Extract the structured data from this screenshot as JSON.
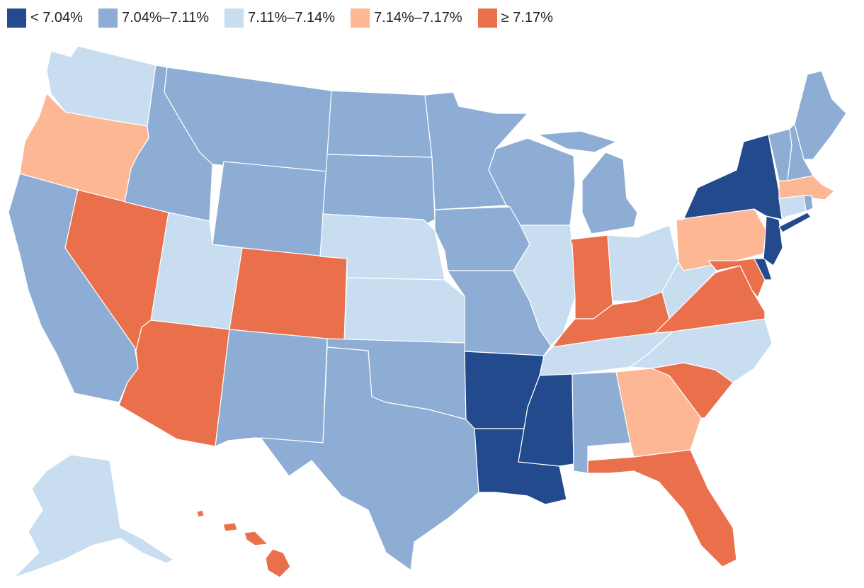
{
  "legend": {
    "bins": [
      {
        "label": "< 7.04%",
        "color": "#234a8c"
      },
      {
        "label": "7.04%–7.11%",
        "color": "#8eadd5"
      },
      {
        "label": "7.11%–7.14%",
        "color": "#c8ddf0"
      },
      {
        "label": "7.14%–7.17%",
        "color": "#fdb794"
      },
      {
        "label": "≥ 7.17%",
        "color": "#ea6f4b"
      }
    ]
  },
  "chart_data": {
    "type": "choropleth",
    "bin_by_state": {
      "WA": 2,
      "OR": 3,
      "CA": 1,
      "NV": 4,
      "ID": 1,
      "MT": 1,
      "WY": 1,
      "UT": 2,
      "AZ": 4,
      "CO": 4,
      "NM": 1,
      "ND": 1,
      "SD": 1,
      "NE": 2,
      "KS": 2,
      "OK": 1,
      "TX": 1,
      "MN": 1,
      "IA": 1,
      "MO": 1,
      "AR": 0,
      "LA": 0,
      "WI": 1,
      "IL": 2,
      "MI": 1,
      "IN": 4,
      "OH": 2,
      "KY": 4,
      "TN": 2,
      "MS": 0,
      "AL": 1,
      "GA": 3,
      "FL": 4,
      "SC": 4,
      "NC": 2,
      "VA": 4,
      "WV": 2,
      "PA": 3,
      "NY": 0,
      "NJ": 0,
      "DE": 0,
      "MD": 4,
      "CT": 2,
      "RI": 1,
      "MA": 3,
      "VT": 1,
      "NH": 1,
      "ME": 1,
      "AK": 2,
      "HI": 4
    }
  }
}
